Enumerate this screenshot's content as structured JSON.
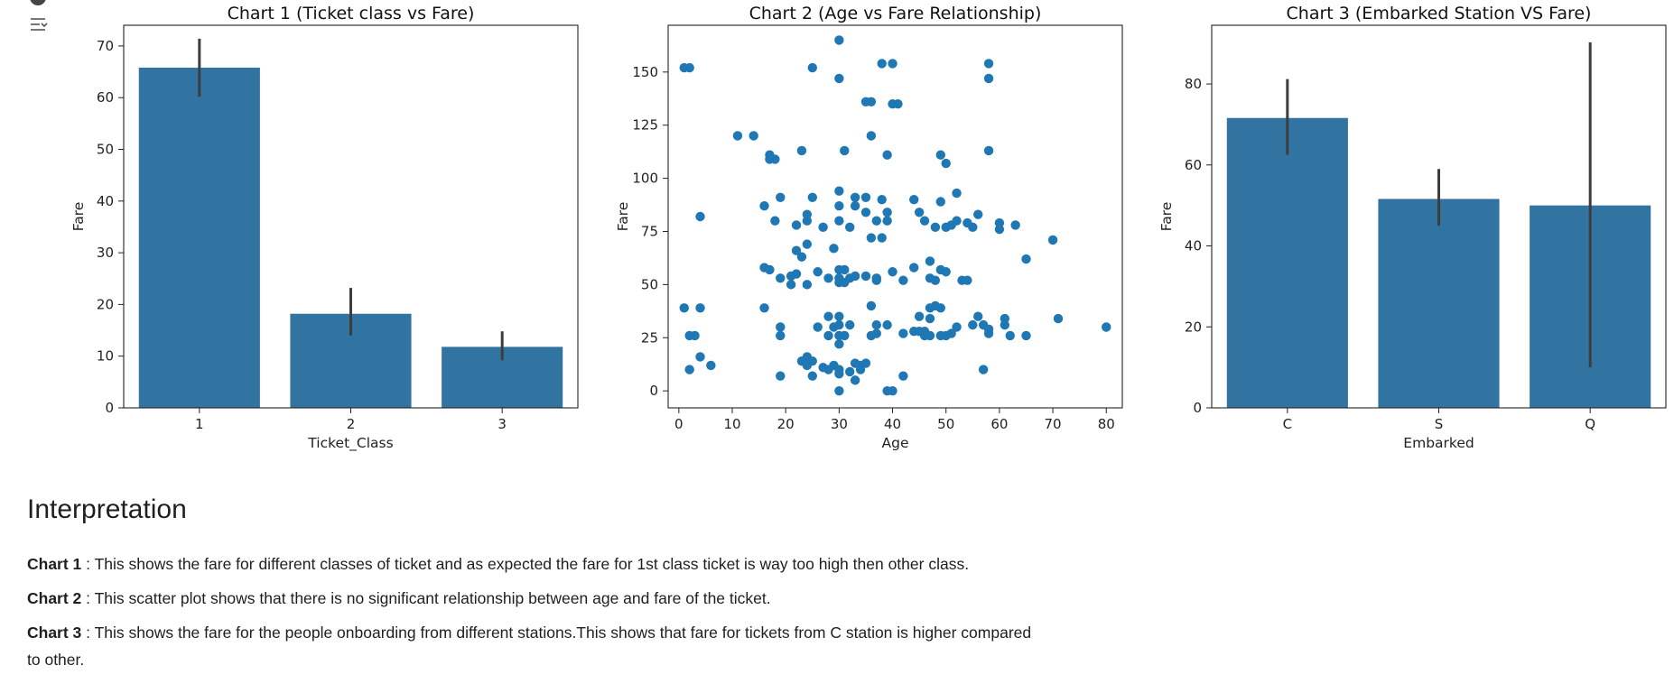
{
  "toolbar": {
    "icons": [
      "circle-icon",
      "filter-sort-icon"
    ]
  },
  "chart_data": [
    {
      "type": "bar",
      "title": "Chart 1 (Ticket class vs Fare)",
      "xlabel": "Ticket_Class",
      "ylabel": "Fare",
      "categories": [
        "1",
        "2",
        "3"
      ],
      "values": [
        65.8,
        18.2,
        11.8
      ],
      "error_low": [
        60.2,
        14.0,
        9.2
      ],
      "error_high": [
        71.4,
        23.2,
        14.8
      ],
      "ylim": [
        0,
        74
      ],
      "yticks": [
        0,
        10,
        20,
        30,
        40,
        50,
        60,
        70
      ],
      "color": "#3274a1"
    },
    {
      "type": "scatter",
      "title": "Chart 2 (Age vs Fare Relationship)",
      "xlabel": "Age",
      "ylabel": "Fare",
      "xlim": [
        -2,
        83
      ],
      "ylim": [
        -8,
        172
      ],
      "xticks": [
        0,
        10,
        20,
        30,
        40,
        50,
        60,
        70,
        80
      ],
      "yticks": [
        0,
        25,
        50,
        75,
        100,
        125,
        150
      ],
      "color": "#1f77b4",
      "points": [
        [
          30,
          165
        ],
        [
          1,
          152
        ],
        [
          2,
          152
        ],
        [
          25,
          152
        ],
        [
          30,
          147
        ],
        [
          38,
          154
        ],
        [
          40,
          154
        ],
        [
          58,
          154
        ],
        [
          58,
          147
        ],
        [
          35,
          136
        ],
        [
          36,
          136
        ],
        [
          40,
          135
        ],
        [
          41,
          135
        ],
        [
          11,
          120
        ],
        [
          14,
          120
        ],
        [
          36,
          120
        ],
        [
          23,
          113
        ],
        [
          31,
          113
        ],
        [
          58,
          113
        ],
        [
          17,
          111
        ],
        [
          18,
          109
        ],
        [
          17,
          109
        ],
        [
          39,
          111
        ],
        [
          49,
          111
        ],
        [
          50,
          107
        ],
        [
          30,
          94
        ],
        [
          52,
          93
        ],
        [
          19,
          91
        ],
        [
          25,
          91
        ],
        [
          33,
          91
        ],
        [
          35,
          91
        ],
        [
          38,
          90
        ],
        [
          44,
          90
        ],
        [
          49,
          89
        ],
        [
          30,
          87
        ],
        [
          16,
          87
        ],
        [
          33,
          87
        ],
        [
          35,
          84
        ],
        [
          39,
          84
        ],
        [
          45,
          84
        ],
        [
          24,
          83
        ],
        [
          4,
          82
        ],
        [
          56,
          83
        ],
        [
          18,
          80
        ],
        [
          24,
          80
        ],
        [
          30,
          80
        ],
        [
          37,
          80
        ],
        [
          39,
          80
        ],
        [
          46,
          80
        ],
        [
          52,
          80
        ],
        [
          54,
          79
        ],
        [
          60,
          79
        ],
        [
          63,
          78
        ],
        [
          22,
          78
        ],
        [
          27,
          77
        ],
        [
          32,
          77
        ],
        [
          48,
          77
        ],
        [
          50,
          77
        ],
        [
          51,
          78
        ],
        [
          55,
          77
        ],
        [
          60,
          76
        ],
        [
          36,
          72
        ],
        [
          38,
          72
        ],
        [
          70,
          71
        ],
        [
          24,
          69
        ],
        [
          29,
          67
        ],
        [
          22,
          66
        ],
        [
          23,
          63
        ],
        [
          47,
          61
        ],
        [
          65,
          62
        ],
        [
          16,
          58
        ],
        [
          17,
          57
        ],
        [
          44,
          58
        ],
        [
          30,
          57
        ],
        [
          31,
          57
        ],
        [
          40,
          56
        ],
        [
          49,
          57
        ],
        [
          50,
          56
        ],
        [
          22,
          55
        ],
        [
          26,
          56
        ],
        [
          19,
          53
        ],
        [
          21,
          54
        ],
        [
          30,
          53
        ],
        [
          28,
          53
        ],
        [
          32,
          53
        ],
        [
          33,
          54
        ],
        [
          35,
          54
        ],
        [
          37,
          53
        ],
        [
          37,
          52
        ],
        [
          42,
          52
        ],
        [
          47,
          53
        ],
        [
          48,
          52
        ],
        [
          53,
          52
        ],
        [
          54,
          52
        ],
        [
          30,
          51
        ],
        [
          31,
          51
        ],
        [
          21,
          50
        ],
        [
          24,
          50
        ],
        [
          1,
          39
        ],
        [
          4,
          39
        ],
        [
          16,
          39
        ],
        [
          36,
          40
        ],
        [
          47,
          39
        ],
        [
          48,
          40
        ],
        [
          49,
          39
        ],
        [
          28,
          35
        ],
        [
          30,
          35
        ],
        [
          45,
          35
        ],
        [
          47,
          34
        ],
        [
          56,
          35
        ],
        [
          61,
          34
        ],
        [
          71,
          34
        ],
        [
          19,
          30
        ],
        [
          26,
          30
        ],
        [
          29,
          30
        ],
        [
          30,
          31
        ],
        [
          32,
          31
        ],
        [
          37,
          31
        ],
        [
          39,
          31
        ],
        [
          44,
          28
        ],
        [
          46,
          28
        ],
        [
          47,
          26
        ],
        [
          50,
          26
        ],
        [
          51,
          27
        ],
        [
          52,
          30
        ],
        [
          55,
          31
        ],
        [
          57,
          31
        ],
        [
          58,
          29
        ],
        [
          61,
          31
        ],
        [
          80,
          30
        ],
        [
          2,
          26
        ],
        [
          3,
          26
        ],
        [
          19,
          26
        ],
        [
          28,
          26
        ],
        [
          30,
          26
        ],
        [
          31,
          26
        ],
        [
          36,
          26
        ],
        [
          37,
          27
        ],
        [
          42,
          27
        ],
        [
          45,
          28
        ],
        [
          46,
          26
        ],
        [
          49,
          26
        ],
        [
          58,
          27
        ],
        [
          62,
          26
        ],
        [
          65,
          26
        ],
        [
          30,
          22
        ],
        [
          24,
          16
        ],
        [
          4,
          16
        ],
        [
          6,
          12
        ],
        [
          2,
          10
        ],
        [
          23,
          14
        ],
        [
          25,
          14
        ],
        [
          24,
          12
        ],
        [
          29,
          12
        ],
        [
          33,
          13
        ],
        [
          34,
          12
        ],
        [
          35,
          13
        ],
        [
          27,
          11
        ],
        [
          28,
          10
        ],
        [
          30,
          10
        ],
        [
          32,
          9
        ],
        [
          34,
          10
        ],
        [
          19,
          7
        ],
        [
          25,
          7
        ],
        [
          30,
          8
        ],
        [
          33,
          5
        ],
        [
          42,
          7
        ],
        [
          57,
          10
        ],
        [
          30,
          0
        ],
        [
          39,
          0
        ],
        [
          40,
          0
        ]
      ]
    },
    {
      "type": "bar",
      "title": "Chart 3 (Embarked Station VS Fare)",
      "xlabel": "Embarked",
      "ylabel": "Fare",
      "categories": [
        "C",
        "S",
        "Q"
      ],
      "values": [
        71.6,
        51.6,
        50.0
      ],
      "error_low": [
        62.5,
        45.0,
        10.0
      ],
      "error_high": [
        81.2,
        59.0,
        90.3
      ],
      "ylim": [
        0,
        94.5
      ],
      "yticks": [
        0,
        20,
        40,
        60,
        80
      ],
      "color": "#3274a1"
    }
  ],
  "interpretation": {
    "heading": "Interpretation",
    "items": [
      {
        "label": "Chart 1",
        "text": " : This shows the fare for different classes of ticket and as expected the fare for 1st class ticket is way too high then other class."
      },
      {
        "label": "Chart 2",
        "text": " : This scatter plot shows that there is no significant relationship between age and fare of the ticket."
      },
      {
        "label": "Chart 3",
        "text": " : This shows the fare for the people onboarding from different stations.This shows that fare for tickets from C station is higher compared to other."
      }
    ]
  }
}
